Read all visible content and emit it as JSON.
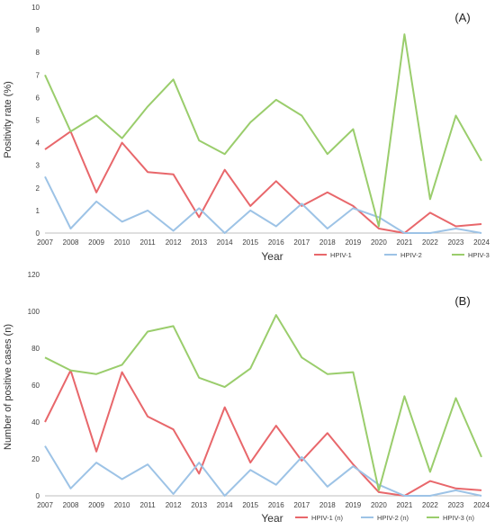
{
  "chart_data": [
    {
      "type": "line",
      "panel_label": "(A)",
      "xlabel": "Year",
      "ylabel": "Positivity rate (%)",
      "ylim": [
        0,
        10
      ],
      "yticks": [
        0,
        1,
        2,
        3,
        4,
        5,
        6,
        7,
        8,
        9,
        10
      ],
      "grid": false,
      "legend_position": "bottom-right",
      "x": [
        "2007",
        "2008",
        "2009",
        "2010",
        "2011",
        "2012",
        "2013",
        "2014",
        "2015",
        "2016",
        "2017",
        "2018",
        "2019",
        "2020",
        "2021",
        "2022",
        "2023",
        "2024"
      ],
      "series": [
        {
          "name": "HPIV-1",
          "color": "#e8676b",
          "values": [
            3.7,
            4.5,
            1.8,
            4.0,
            2.7,
            2.6,
            0.7,
            2.8,
            1.2,
            2.3,
            1.2,
            1.8,
            1.2,
            0.2,
            0.0,
            0.9,
            0.3,
            0.4
          ]
        },
        {
          "name": "HPIV-2",
          "color": "#9dc3e6",
          "values": [
            2.5,
            0.2,
            1.4,
            0.5,
            1.0,
            0.1,
            1.1,
            0.0,
            1.0,
            0.3,
            1.3,
            0.2,
            1.1,
            0.7,
            0.0,
            0.0,
            0.2,
            0.0
          ]
        },
        {
          "name": "HPIV-3",
          "color": "#9acd6c",
          "values": [
            7.0,
            4.5,
            5.2,
            4.2,
            5.6,
            6.8,
            4.1,
            3.5,
            4.9,
            5.9,
            5.2,
            3.5,
            4.6,
            0.3,
            8.8,
            1.5,
            5.2,
            3.2
          ]
        }
      ]
    },
    {
      "type": "line",
      "panel_label": "(B)",
      "xlabel": "Year",
      "ylabel": "Number of positive cases (n)",
      "ylim": [
        0,
        120
      ],
      "yticks": [
        0,
        20,
        40,
        60,
        80,
        100,
        120
      ],
      "grid": false,
      "legend_position": "bottom-right",
      "x": [
        "2007",
        "2008",
        "2009",
        "2010",
        "2011",
        "2012",
        "2013",
        "2014",
        "2015",
        "2016",
        "2017",
        "2018",
        "2019",
        "2020",
        "2021",
        "2022",
        "2023",
        "2024"
      ],
      "series": [
        {
          "name": "HPIV-1 (n)",
          "color": "#e8676b",
          "values": [
            40,
            68,
            24,
            67,
            43,
            36,
            12,
            48,
            18,
            38,
            19,
            34,
            17,
            2,
            0,
            8,
            4,
            3
          ]
        },
        {
          "name": "HPIV-2 (n)",
          "color": "#9dc3e6",
          "values": [
            27,
            4,
            18,
            9,
            17,
            1,
            18,
            0,
            14,
            6,
            21,
            5,
            16,
            6,
            0,
            0,
            3,
            0
          ]
        },
        {
          "name": "HPIV-3 (n)",
          "color": "#9acd6c",
          "values": [
            75,
            68,
            66,
            71,
            89,
            92,
            64,
            59,
            69,
            98,
            75,
            66,
            67,
            3,
            54,
            13,
            53,
            21
          ]
        }
      ]
    }
  ]
}
